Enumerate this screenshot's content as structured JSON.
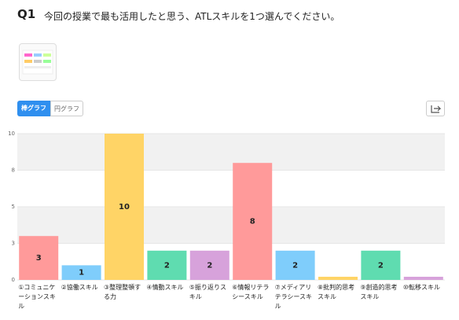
{
  "header": {
    "number": "Q1",
    "question": "今回の授業で最も活用したと思う、ATLスキルを1つ選んでください。"
  },
  "toggle": {
    "bar": "棒グラフ",
    "pie": "円グラフ"
  },
  "chart_data": {
    "type": "bar",
    "categories": [
      "①コミュニケーションスキル",
      "②協働スキル",
      "③整理整頓する力",
      "④情動スキル",
      "⑤振り返りスキル",
      "⑥情報リテラシースキル",
      "⑦メディアリテラシースキル",
      "⑧批判的思考スキル",
      "⑨創造的思考スキル",
      "⑩転移スキル"
    ],
    "values": [
      3,
      1,
      10,
      2,
      2,
      8,
      2,
      0,
      2,
      0
    ],
    "colors": [
      "#ff9a9a",
      "#7fcdfb",
      "#ffd466",
      "#5fdcb0",
      "#d7a2db",
      "#ff9a9a",
      "#7fcdfb",
      "#ffd466",
      "#5fdcb0",
      "#d7a2db"
    ],
    "ylim": [
      0,
      10
    ],
    "yticks": [
      0,
      {
        "value": 2.5,
        "label": "3"
      },
      5,
      {
        "value": 7.5,
        "label": "8"
      },
      10
    ],
    "grid": true
  }
}
